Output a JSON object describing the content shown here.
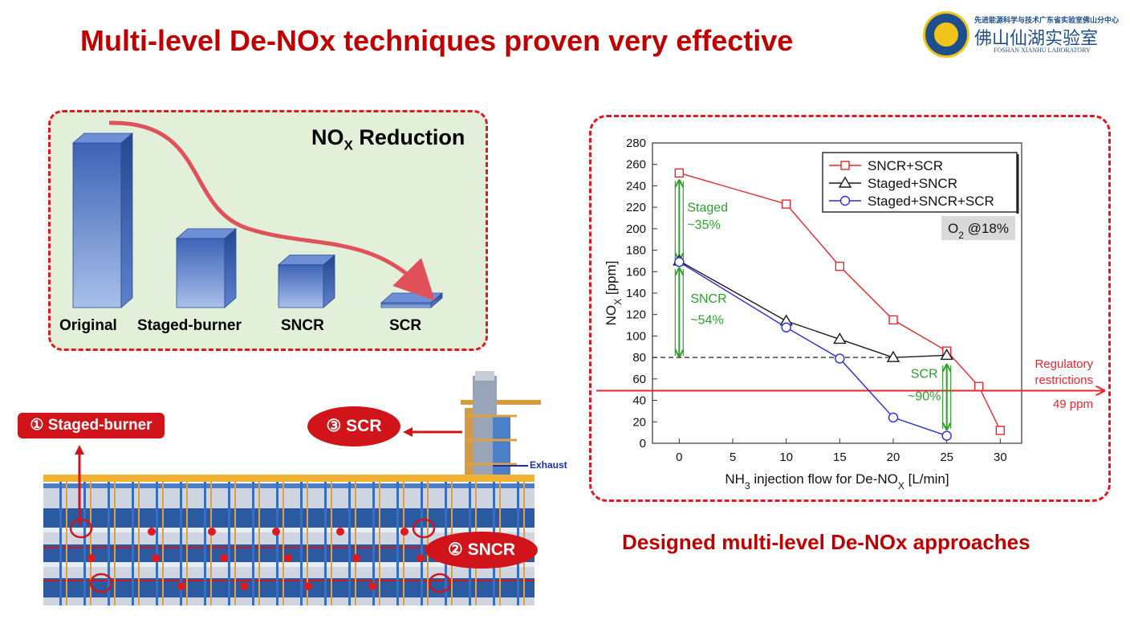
{
  "slide": {
    "title": "Multi-level De-NOx techniques proven very effective",
    "caption": "Designed multi-level De-NOx approaches"
  },
  "logo": {
    "cn_top": "先进能源科学与技术广东省实验室佛山分中心",
    "cn_main": "佛山仙湖实验室",
    "en": "FOSHAN XIANHU LABORATORY"
  },
  "reduction": {
    "title_main": "NO",
    "title_sub": "X",
    "title_rest": " Reduction",
    "bars": [
      {
        "label": "Original",
        "level": 1.0
      },
      {
        "label": "Staged-burner",
        "level": 0.42
      },
      {
        "label": "SNCR",
        "level": 0.26
      },
      {
        "label": "SCR",
        "level": 0.02
      }
    ]
  },
  "plant": {
    "callouts": {
      "staged_burner": "① Staged-burner",
      "scr": "③ SCR",
      "sncr": "② SNCR"
    },
    "exhaust": "Exhaust"
  },
  "chart_data": {
    "type": "line",
    "xlabel_parts": [
      "NH",
      "3",
      " injection flow for De-NO",
      "X",
      " [L/min]"
    ],
    "ylabel_parts": [
      "NO",
      "X",
      " [ppm]"
    ],
    "xlim": [
      -2.5,
      32
    ],
    "ylim": [
      0,
      280
    ],
    "xticks": [
      0,
      5,
      10,
      15,
      20,
      25,
      30
    ],
    "yticks": [
      0,
      20,
      40,
      60,
      80,
      100,
      120,
      140,
      160,
      180,
      200,
      220,
      240,
      260,
      280
    ],
    "legend_position": "top-right",
    "series": [
      {
        "name": "SNCR+SCR",
        "color": "#e8262b",
        "marker": "square",
        "x": [
          0,
          10,
          15,
          20,
          25,
          28,
          30
        ],
        "y": [
          252,
          223,
          165,
          115,
          86,
          53,
          12
        ]
      },
      {
        "name": "Staged+SNCR",
        "color": "#1a1a1a",
        "marker": "triangle",
        "x": [
          0,
          10,
          15,
          20,
          25
        ],
        "y": [
          170,
          114,
          97,
          80,
          82
        ]
      },
      {
        "name": "Staged+SNCR+SCR",
        "color": "#2b2fd0",
        "marker": "circle",
        "x": [
          0,
          10,
          15,
          20,
          25
        ],
        "y": [
          169,
          108,
          79,
          24,
          7
        ]
      }
    ],
    "o2_note": {
      "pre": "O",
      "sub": "2",
      "post": " @18%"
    },
    "reference_line": {
      "y": 80
    },
    "regulatory_line": {
      "y": 49,
      "color": "#e8262b",
      "label1": "Regulatory",
      "label2": "restrictions",
      "value_label": "49 ppm"
    },
    "annotations": [
      {
        "x": 0,
        "y_from": 252,
        "y_to": 170,
        "color": "#2ca02c",
        "line1": "Staged",
        "line2": "~35%"
      },
      {
        "x": 0,
        "y_from": 170,
        "y_to": 80,
        "color": "#2ca02c",
        "line1": "SNCR",
        "line2": "~54%"
      },
      {
        "x": 25,
        "y_from": 80,
        "y_to": 12,
        "color": "#2ca02c",
        "line1": "SCR",
        "line2": "~90%"
      }
    ]
  }
}
